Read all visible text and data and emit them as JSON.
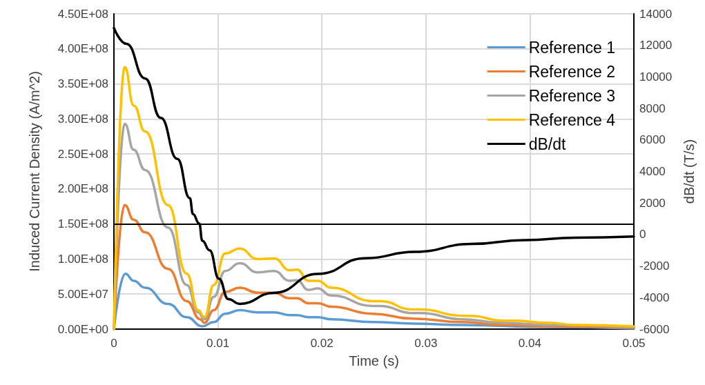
{
  "chart_data": {
    "type": "line",
    "xlabel": "Time (s)",
    "ylabel": "Induced Current Density (A/m^2)",
    "y2label": "dB/dt (T/s)",
    "xlim": [
      0,
      0.05
    ],
    "xticks": [
      0,
      0.01,
      0.02,
      0.03,
      0.04,
      0.05
    ],
    "ylim": [
      0,
      450000000
    ],
    "yticks": [
      {
        "value": 0,
        "label": "0.00E+00"
      },
      {
        "value": 50000000,
        "label": "5.00E+07"
      },
      {
        "value": 100000000,
        "label": "1.00E+08"
      },
      {
        "value": 150000000,
        "label": "1.50E+08"
      },
      {
        "value": 200000000,
        "label": "2.00E+08"
      },
      {
        "value": 250000000,
        "label": "2.50E+08"
      },
      {
        "value": 300000000,
        "label": "3.00E+08"
      },
      {
        "value": 350000000,
        "label": "3.50E+08"
      },
      {
        "value": 400000000,
        "label": "4.00E+08"
      },
      {
        "value": 450000000,
        "label": "4.50E+08"
      }
    ],
    "y2lim": [
      -6000,
      14000
    ],
    "y2ticks": [
      -6000,
      -4000,
      -2000,
      0,
      2000,
      4000,
      6000,
      8000,
      10000,
      12000,
      14000
    ],
    "grid": true,
    "legend": "top right",
    "marker": "none",
    "line_style": "solid",
    "ref_lines": [
      {
        "axis": "y",
        "value": 150000000,
        "color": "#000000"
      }
    ],
    "series": [
      {
        "name": "Reference 1",
        "color": "#5b9bd5",
        "x": [
          0,
          0.0011,
          0.0019,
          0.003,
          0.0052,
          0.007,
          0.0085,
          0.0096,
          0.0107,
          0.0121,
          0.0138,
          0.0154,
          0.0169,
          0.0176,
          0.0187,
          0.0196,
          0.0209,
          0.0249,
          0.0287,
          0.0335,
          0.0417,
          0.05
        ],
        "values": [
          0,
          79000000,
          69000000,
          59000000,
          36000000,
          17000000,
          4000000,
          10000000,
          22000000,
          27000000,
          24000000,
          24000000,
          20000000,
          20000000,
          17000000,
          17000000,
          14000000,
          10000000,
          8000000,
          6000000,
          3000000,
          1000000
        ]
      },
      {
        "name": "Reference 2",
        "color": "#ed7d31",
        "x": [
          0,
          0.00104,
          0.0019,
          0.003,
          0.0052,
          0.007,
          0.0083,
          0.0087,
          0.0096,
          0.0107,
          0.0121,
          0.0138,
          0.0154,
          0.0169,
          0.0176,
          0.0187,
          0.0196,
          0.0209,
          0.0249,
          0.0287,
          0.0335,
          0.0373,
          0.0417,
          0.05
        ],
        "values": [
          0,
          177000000,
          156000000,
          138000000,
          86000000,
          40000000,
          14000000,
          9000000,
          27000000,
          53000000,
          59000000,
          52000000,
          52000000,
          44000000,
          44000000,
          37000000,
          37000000,
          32000000,
          22000000,
          15000000,
          10000000,
          6000000,
          4000000,
          2000000
        ]
      },
      {
        "name": "Reference 3",
        "color": "#a5a5a5",
        "x": [
          0,
          0.00104,
          0.0019,
          0.003,
          0.0052,
          0.007,
          0.0081,
          0.0087,
          0.0096,
          0.0107,
          0.0121,
          0.0138,
          0.0154,
          0.0169,
          0.0176,
          0.0187,
          0.0196,
          0.0209,
          0.0249,
          0.0256,
          0.0287,
          0.0295,
          0.0335,
          0.0373,
          0.0417,
          0.05
        ],
        "values": [
          0,
          293000000,
          256000000,
          227000000,
          145000000,
          63000000,
          24000000,
          14000000,
          46000000,
          83000000,
          94000000,
          81000000,
          83000000,
          69000000,
          70000000,
          56000000,
          58000000,
          48000000,
          33000000,
          33000000,
          23000000,
          23000000,
          14000000,
          9000000,
          6000000,
          3000000
        ]
      },
      {
        "name": "Reference 4",
        "color": "#ffc000",
        "x": [
          0,
          0.00104,
          0.0019,
          0.003,
          0.0052,
          0.007,
          0.0081,
          0.0087,
          0.0096,
          0.0107,
          0.0121,
          0.0138,
          0.0154,
          0.0169,
          0.0176,
          0.0187,
          0.0196,
          0.0209,
          0.0249,
          0.0256,
          0.0287,
          0.0295,
          0.0335,
          0.0344,
          0.0373,
          0.0384,
          0.0417,
          0.0444,
          0.05
        ],
        "values": [
          0,
          374000000,
          319000000,
          282000000,
          177000000,
          79000000,
          27000000,
          17000000,
          63000000,
          108000000,
          115000000,
          100000000,
          101000000,
          84000000,
          85000000,
          69000000,
          69000000,
          59000000,
          40000000,
          40000000,
          28000000,
          28000000,
          19000000,
          19000000,
          12000000,
          12000000,
          9000000,
          6000000,
          4000000
        ]
      },
      {
        "name": "dB/dt",
        "color": "#000000",
        "axis": "y2",
        "x": [
          0,
          0.0012,
          0.003,
          0.0045,
          0.0061,
          0.0073,
          0.0076,
          0.0082,
          0.0085,
          0.0092,
          0.0101,
          0.011,
          0.0121,
          0.0154,
          0.0196,
          0.0242,
          0.0289,
          0.0344,
          0.0395,
          0.0444,
          0.05
        ],
        "values": [
          13100,
          12100,
          9900,
          7400,
          4800,
          2300,
          1300,
          700,
          -400,
          -1000,
          -2800,
          -4100,
          -4400,
          -3700,
          -2500,
          -1500,
          -1100,
          -600,
          -350,
          -200,
          -120
        ]
      }
    ]
  }
}
